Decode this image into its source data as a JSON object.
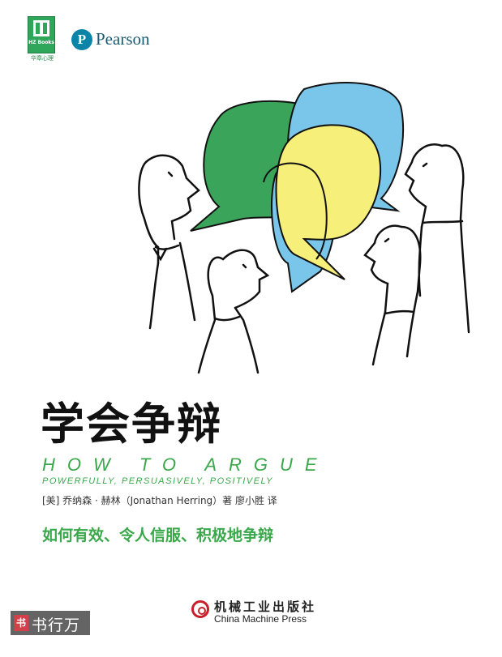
{
  "publisher_top": {
    "hz_logo_sub": "HZ Books",
    "hz_caption": "华章心理",
    "pearson_letter": "P",
    "pearson_name": "Pearson"
  },
  "book": {
    "title_cn": "学会争辩",
    "title_en": "HOW TO ARGUE",
    "subtitle_en": "POWERFULLY, PERSUASIVELY, POSITIVELY",
    "authors_line": "[美] 乔纳森 · 赫林（Jonathan Herring）著   廖小胜  译",
    "tagline": "如何有效、令人信服、积极地争辩"
  },
  "publisher_bottom": {
    "name_cn": "机械工业出版社",
    "name_en": "China Machine Press"
  },
  "watermark": {
    "text": "书行万里",
    "seal": "书"
  },
  "colors": {
    "green_bubble": "#3aa55a",
    "blue_bubble": "#79c6ea",
    "yellow_bubble": "#f6ef7a",
    "accent_green": "#3aa84a",
    "pearson_blue": "#0c84a7"
  },
  "icons": [
    "hz-books-logo",
    "pearson-logo-icon",
    "china-machine-press-logo-icon"
  ]
}
